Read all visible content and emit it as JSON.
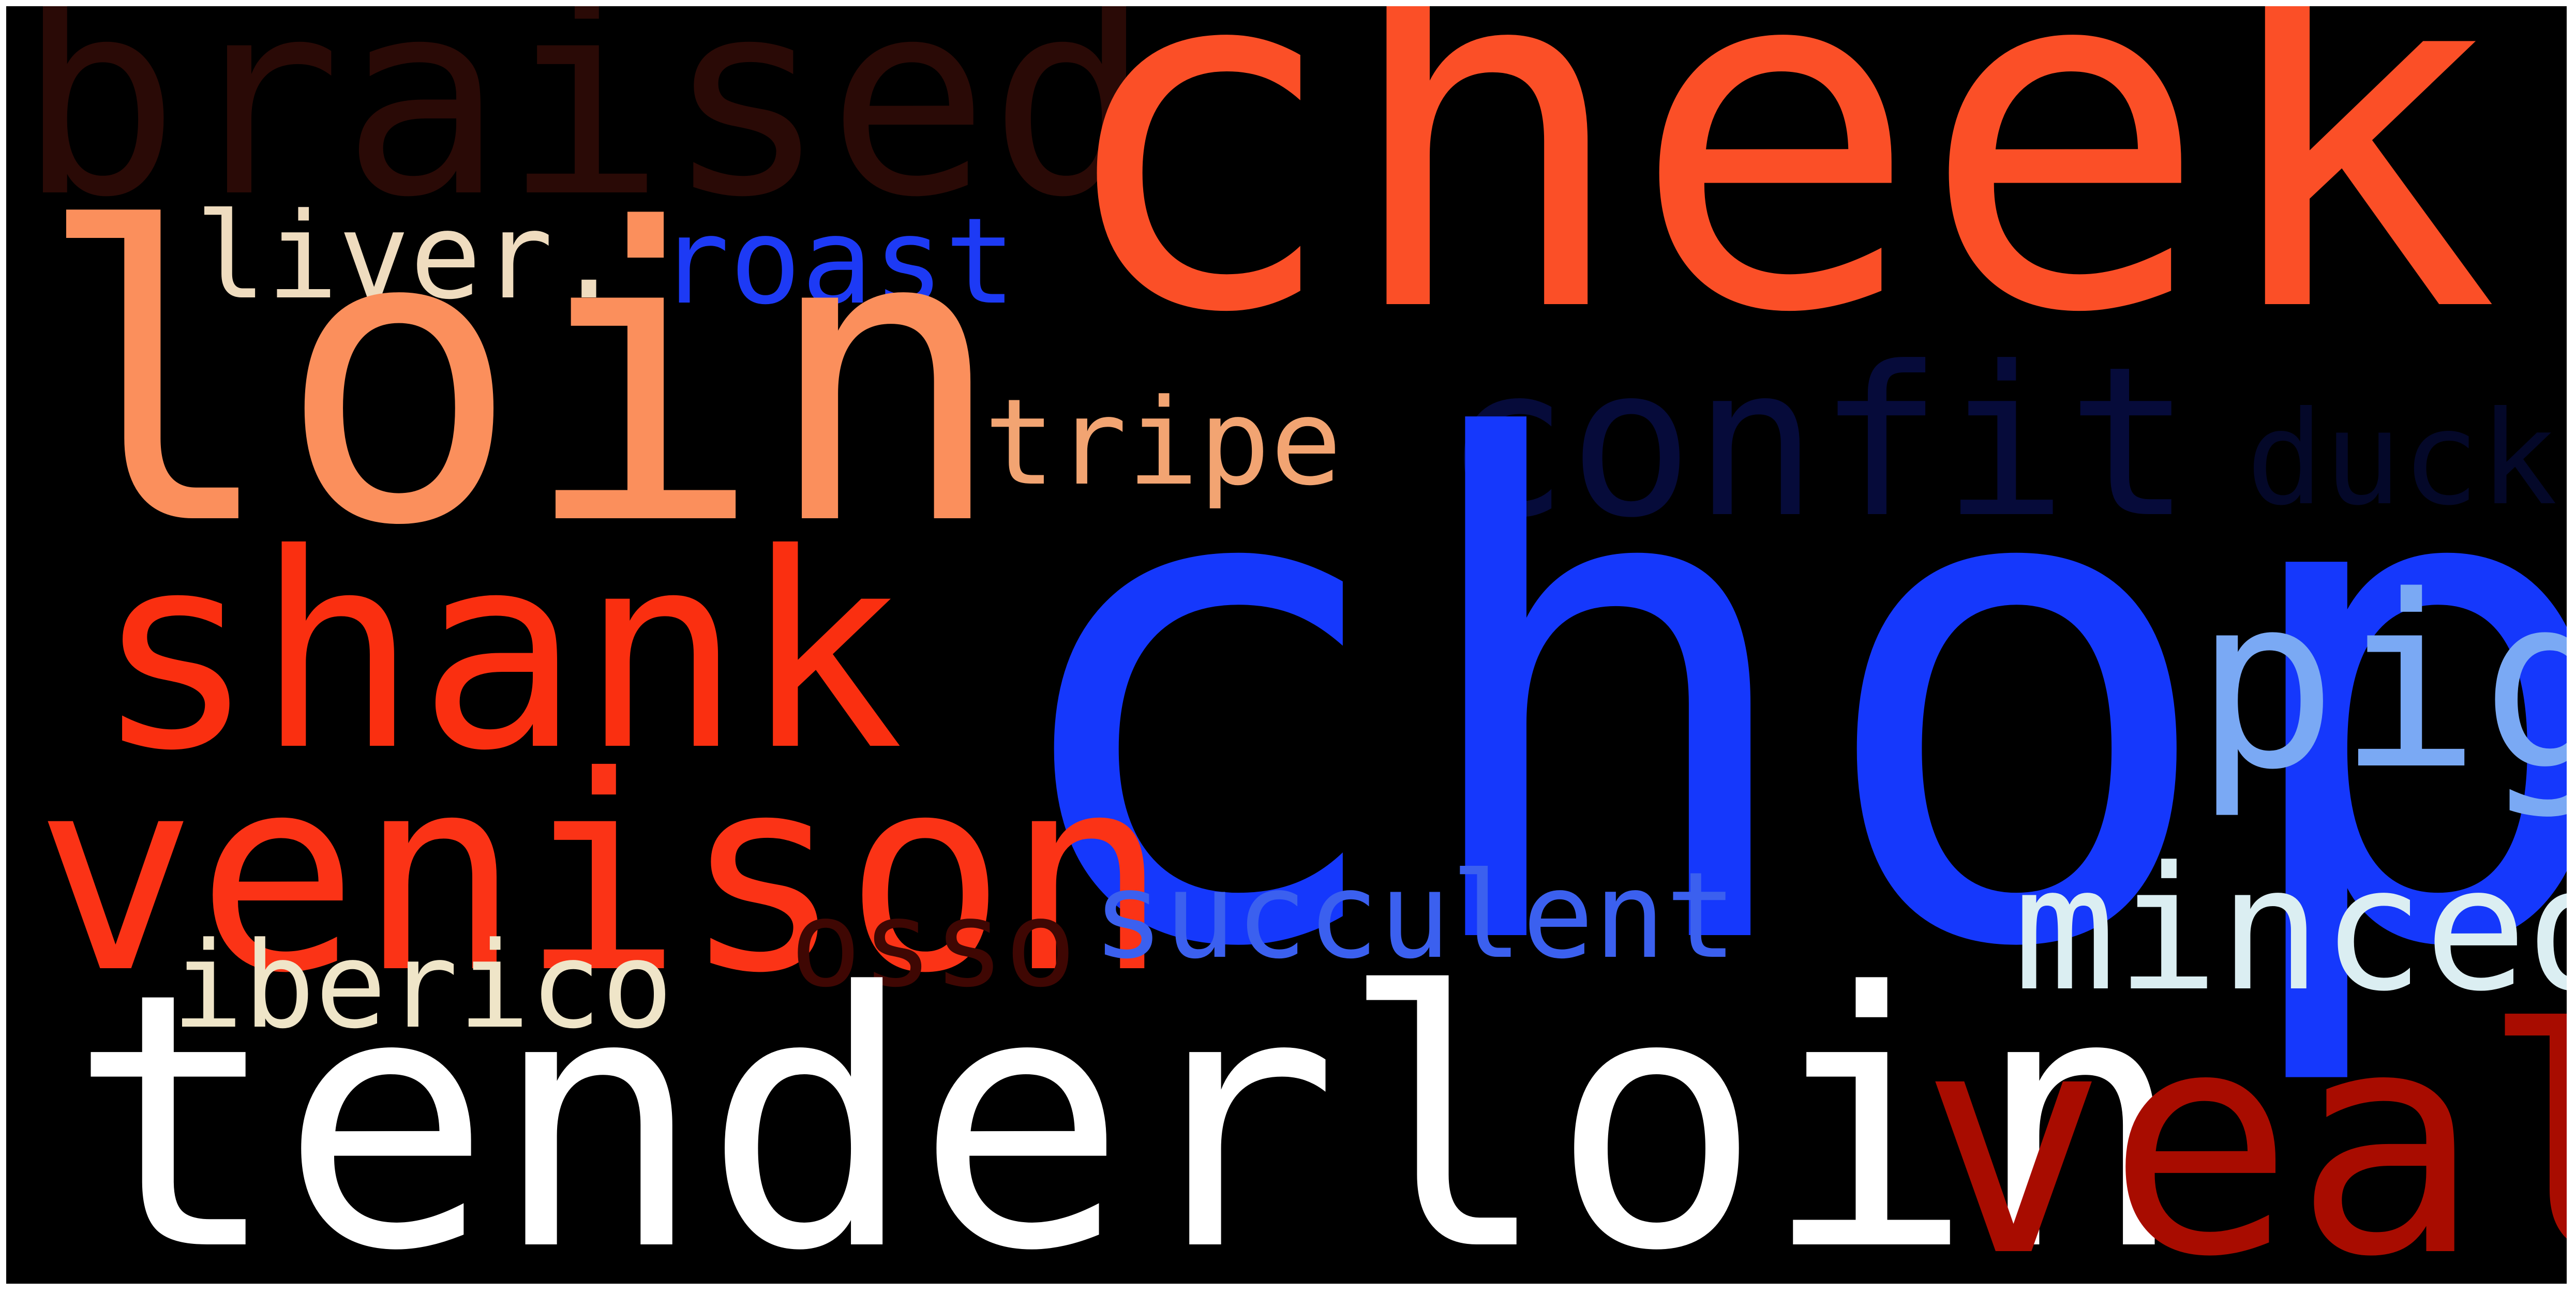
{
  "words": {
    "braised": {
      "text": "braised",
      "color": "#2a0a06"
    },
    "cheek": {
      "text": "cheek",
      "color": "#fb4f27"
    },
    "liver": {
      "text": "liver.",
      "color": "#efdcbf"
    },
    "roast": {
      "text": "roast",
      "color": "#1d3af5"
    },
    "loin": {
      "text": "loin",
      "color": "#fb8f5c"
    },
    "tripe": {
      "text": "tripe",
      "color": "#f2a472"
    },
    "confit": {
      "text": "confit",
      "color": "#060b3a"
    },
    "duck": {
      "text": "duck",
      "color": "#040829"
    },
    "chop": {
      "text": "chop",
      "color": "#1538fc"
    },
    "shank": {
      "text": "shank",
      "color": "#fa2f10"
    },
    "pig": {
      "text": "pig",
      "color": "#7aa9f4"
    },
    "venison": {
      "text": "venison",
      "color": "#fb3316"
    },
    "succulent": {
      "text": "succulent",
      "color": "#3b60ef"
    },
    "minced": {
      "text": "minced",
      "color": "#dbeef2"
    },
    "osso": {
      "text": "osso",
      "color": "#3f0703"
    },
    "iberico": {
      "text": "iberico",
      "color": "#efe5c8"
    },
    "tenderloin": {
      "text": "tenderloin",
      "color": "#ffffff"
    },
    "veal": {
      "text": "veal",
      "color": "#a80c00"
    }
  }
}
